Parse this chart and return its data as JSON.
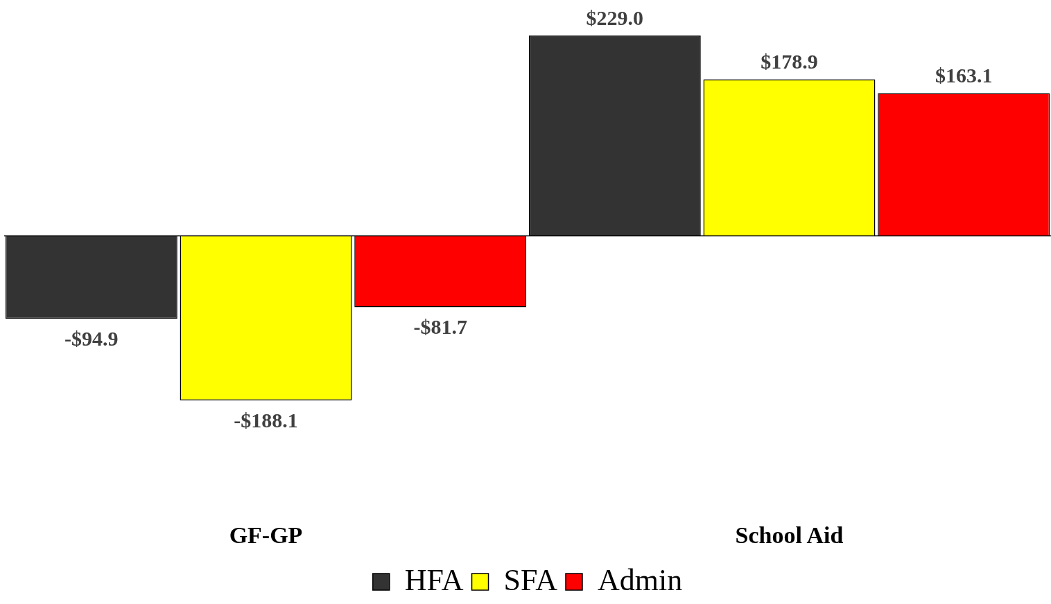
{
  "chart_data": {
    "type": "bar",
    "categories": [
      "GF-GP",
      "School Aid"
    ],
    "series": [
      {
        "name": "HFA",
        "color": "#333333",
        "values": [
          -94.9,
          229.0
        ],
        "value_labels": [
          "-$94.9",
          "$229.0"
        ]
      },
      {
        "name": "SFA",
        "color": "#ffff00",
        "values": [
          -188.1,
          178.9
        ],
        "value_labels": [
          "-$188.1",
          "$178.9"
        ]
      },
      {
        "name": "Admin",
        "color": "#ff0000",
        "values": [
          -81.7,
          163.1
        ],
        "value_labels": [
          "-$81.7",
          "$163.1"
        ]
      }
    ],
    "legend": "bottom",
    "grid": false
  }
}
